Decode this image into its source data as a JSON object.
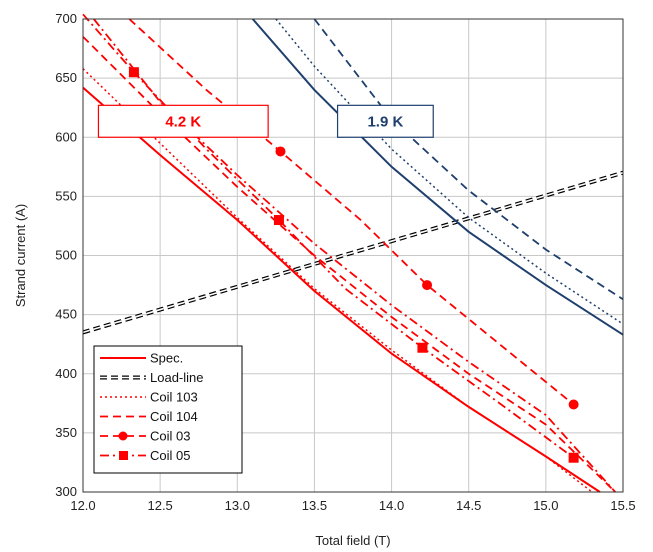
{
  "chart_data": {
    "type": "line",
    "title": "",
    "xlabel": "Total field  (T)",
    "ylabel": "Strand current (A)",
    "xlim": [
      12.0,
      15.5
    ],
    "ylim": [
      300,
      700
    ],
    "xticks": [
      "12.0",
      "12.5",
      "13.0",
      "13.5",
      "14.0",
      "14.5",
      "15.0",
      "15.5"
    ],
    "yticks": [
      "300",
      "350",
      "400",
      "450",
      "500",
      "550",
      "600",
      "650",
      "700"
    ],
    "grid": true,
    "legend_position": "bottom-left",
    "series": [
      {
        "name": "Spec.",
        "color": "#ff0000",
        "dash": "solid",
        "width": 2,
        "marker": "none",
        "legend": true,
        "x": [
          12.0,
          12.5,
          13.0,
          13.5,
          14.0,
          14.5,
          15.0,
          15.35
        ],
        "y": [
          642,
          585,
          530,
          470,
          417,
          372,
          330,
          300
        ]
      },
      {
        "name": "Load-line",
        "color": "#000000",
        "dash": "loadline",
        "width": 2,
        "marker": "none",
        "legend": true,
        "x": [
          12.0,
          15.5
        ],
        "y": [
          435,
          570
        ]
      },
      {
        "name": "Coil 103",
        "color": "#ff0000",
        "dash": "dot",
        "width": 1.5,
        "marker": "none",
        "legend": true,
        "x": [
          12.0,
          12.5,
          13.0,
          13.5,
          14.0,
          14.5,
          15.0,
          15.3
        ],
        "y": [
          658,
          595,
          532,
          472,
          420,
          372,
          330,
          300
        ]
      },
      {
        "name": "Coil 104",
        "color": "#ff0000",
        "dash": "dash",
        "width": 1.8,
        "marker": "none",
        "legend": true,
        "x": [
          12.0,
          12.5,
          13.0,
          13.5,
          14.0,
          14.5,
          15.0,
          15.45
        ],
        "y": [
          685,
          620,
          558,
          500,
          448,
          400,
          357,
          300
        ]
      },
      {
        "name": "Coil 03",
        "color": "#ff0000",
        "dash": "dash",
        "width": 1.8,
        "marker": "circle",
        "legend": true,
        "x": [
          12.3,
          12.8,
          13.28,
          13.8,
          14.23,
          14.7,
          15.18
        ],
        "y": [
          700,
          640,
          588,
          530,
          475,
          425,
          374
        ],
        "marker_x": [
          13.28,
          14.23,
          15.18
        ],
        "marker_y": [
          588,
          475,
          374
        ]
      },
      {
        "name": "Coil 05",
        "color": "#ff0000",
        "dash": "dashdot",
        "width": 1.8,
        "marker": "square",
        "legend": true,
        "x": [
          12.0,
          12.33,
          12.8,
          13.27,
          13.7,
          14.2,
          14.7,
          15.18
        ],
        "y": [
          704,
          655,
          590,
          530,
          472,
          422,
          375,
          329
        ],
        "marker_x": [
          12.33,
          13.27,
          14.2,
          15.18
        ],
        "marker_y": [
          655,
          530,
          422,
          329
        ]
      },
      {
        "name": "",
        "color": "#ff0000",
        "dash": "dashdot",
        "width": 1.8,
        "marker": "none",
        "legend": false,
        "x": [
          12.07,
          12.5,
          13.0,
          13.5,
          14.0,
          14.5,
          15.0,
          15.45
        ],
        "y": [
          700,
          630,
          568,
          510,
          458,
          410,
          365,
          300
        ]
      },
      {
        "name": "",
        "color": "#1f3f6e",
        "dash": "solid",
        "width": 2,
        "marker": "none",
        "legend": false,
        "x": [
          13.1,
          13.5,
          14.0,
          14.5,
          15.0,
          15.5
        ],
        "y": [
          700,
          640,
          575,
          520,
          475,
          433
        ]
      },
      {
        "name": "",
        "color": "#1f3f6e",
        "dash": "dot",
        "width": 1.5,
        "marker": "none",
        "legend": false,
        "x": [
          13.25,
          13.5,
          14.0,
          14.5,
          15.0,
          15.5
        ],
        "y": [
          700,
          660,
          590,
          532,
          485,
          442
        ]
      },
      {
        "name": "",
        "color": "#1f3f6e",
        "dash": "dash",
        "width": 1.8,
        "marker": "none",
        "legend": false,
        "x": [
          13.5,
          14.0,
          14.5,
          15.0,
          15.5
        ],
        "y": [
          700,
          615,
          555,
          505,
          463
        ]
      }
    ],
    "annotations": [
      {
        "text": "4.2 K",
        "color": "#ff0000",
        "border": "#ff0000",
        "x0": 12.1,
        "x1": 13.2,
        "y0": 600,
        "y1": 627
      },
      {
        "text": "1.9 K",
        "color": "#1f3f6e",
        "border": "#1f3f6e",
        "x0": 13.65,
        "x1": 14.27,
        "y0": 600,
        "y1": 627
      }
    ]
  }
}
